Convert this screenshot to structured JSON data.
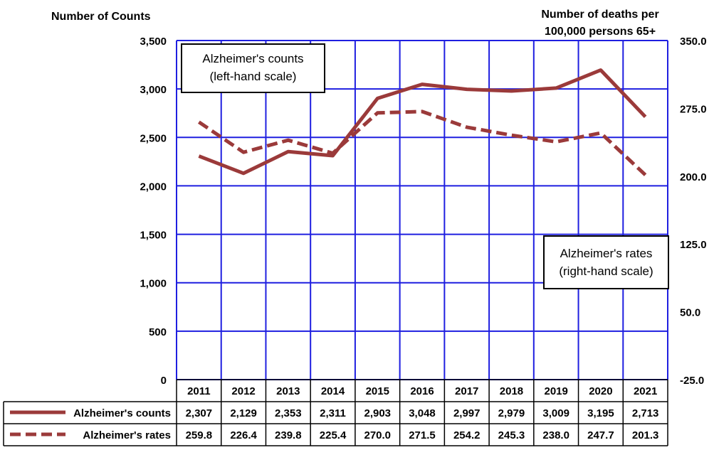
{
  "chart_data": {
    "type": "line",
    "left_axis_title": "Number of Counts",
    "right_axis_title_line1": "Number of deaths per",
    "right_axis_title_line2": "100,000  persons 65+",
    "left_ylim": [
      0,
      3500
    ],
    "left_ticks": [
      0,
      500,
      1000,
      1500,
      2000,
      2500,
      3000,
      3500
    ],
    "left_tick_labels": [
      "0",
      "500",
      "1,000",
      "1,500",
      "2,000",
      "2,500",
      "3,000",
      "3,500"
    ],
    "right_ylim": [
      -25,
      350
    ],
    "right_ticks": [
      -25,
      50,
      125,
      200,
      275,
      350
    ],
    "right_tick_labels": [
      "-25.0",
      "50.0",
      "125.0",
      "200.0",
      "275.0",
      "350.0"
    ],
    "categories": [
      "2011",
      "2012",
      "2013",
      "2014",
      "2015",
      "2016",
      "2017",
      "2018",
      "2019",
      "2020",
      "2021"
    ],
    "grid": true,
    "series": [
      {
        "name": "Alzheimer's counts",
        "axis": "left",
        "style": "solid",
        "color": "#9B3A3A",
        "values": [
          2307,
          2129,
          2353,
          2311,
          2903,
          3048,
          2997,
          2979,
          3009,
          3195,
          2713
        ],
        "labels": [
          "2,307",
          "2,129",
          "2,353",
          "2,311",
          "2,903",
          "3,048",
          "2,997",
          "2,979",
          "3,009",
          "3,195",
          "2,713"
        ]
      },
      {
        "name": "Alzheimer's rates",
        "axis": "right",
        "style": "dashed",
        "color": "#9B3A3A",
        "values": [
          259.8,
          226.4,
          239.8,
          225.4,
          270.0,
          271.5,
          254.2,
          245.3,
          238.0,
          247.7,
          201.3
        ],
        "labels": [
          "259.8",
          "226.4",
          "239.8",
          "225.4",
          "270.0",
          "271.5",
          "254.2",
          "245.3",
          "238.0",
          "247.7",
          "201.3"
        ]
      }
    ],
    "annotations": {
      "counts_line1": "Alzheimer's counts",
      "counts_line2": "(left-hand scale)",
      "rates_line1": "Alzheimer's rates",
      "rates_line2": "(right-hand scale)"
    },
    "colors": {
      "grid": "#1F1FE0",
      "table_border": "#000000"
    }
  }
}
